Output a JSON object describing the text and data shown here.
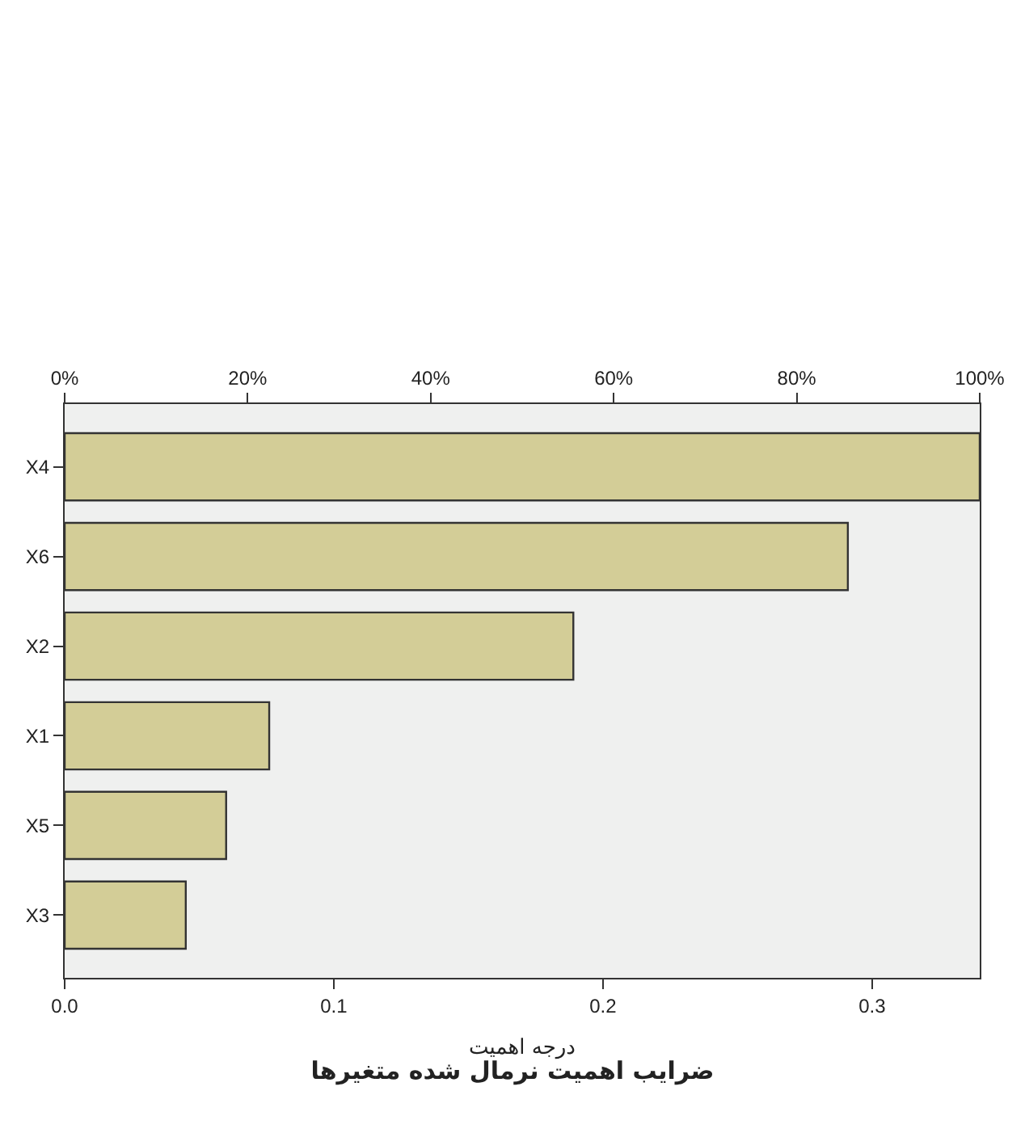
{
  "chart_data": {
    "type": "bar",
    "orientation": "horizontal",
    "title": "ضرایب اهمیت نرمال شده متغیرها",
    "xlabel": "درجه اهمیت",
    "categories": [
      "X4",
      "X6",
      "X2",
      "X1",
      "X5",
      "X3"
    ],
    "values": [
      0.34,
      0.291,
      0.189,
      0.076,
      0.06,
      0.045
    ],
    "color": "#d3cd97",
    "xlim": [
      0,
      0.34
    ],
    "xticks": [
      {
        "value": 0,
        "label": "0.0"
      },
      0.1,
      0.2,
      0.3
    ],
    "x2lim": [
      0,
      100
    ],
    "x2ticks": [
      {
        "value": 0,
        "label": "0%"
      },
      {
        "value": 20,
        "label": "20%"
      },
      {
        "value": 40,
        "label": "40%"
      },
      {
        "value": 60,
        "label": "60%"
      },
      {
        "value": 80,
        "label": "80%"
      },
      {
        "value": 100,
        "label": "100%"
      }
    ],
    "grid": false,
    "legend": false
  }
}
